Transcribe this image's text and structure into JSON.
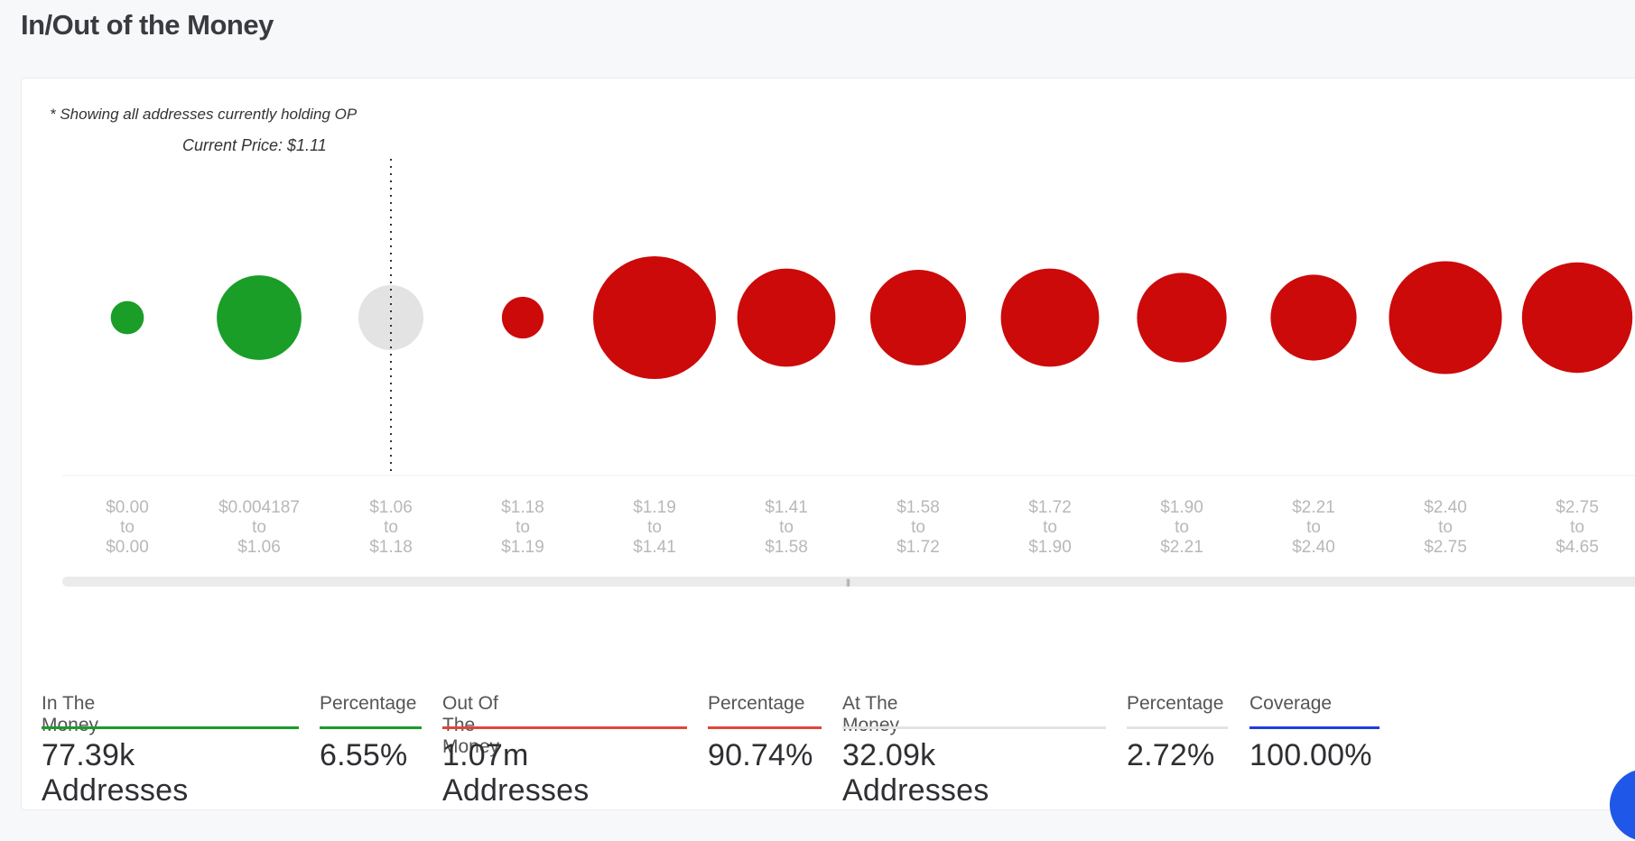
{
  "page": {
    "title": "In/Out of the Money"
  },
  "chart_note": "* Showing all addresses currently holding OP",
  "current_price_label": "Current Price: $1.11",
  "colors": {
    "in_the_money": "#1a9e27",
    "out_of_the_money": "#cc0a0a",
    "at_the_money": "#e3e3e3",
    "coverage": "#1f3fe0",
    "out_line": "#e0473a",
    "axis_text": "#b8b8b8"
  },
  "chart_data": {
    "type": "bubble",
    "current_price": 1.11,
    "x_ranges": [
      {
        "from": "$0.00",
        "to": "$0.00",
        "status": "in",
        "relative_size": 0.27
      },
      {
        "from": "$0.004187",
        "to": "$1.06",
        "status": "in",
        "relative_size": 0.69
      },
      {
        "from": "$1.06",
        "to": "$1.18",
        "status": "at",
        "relative_size": 0.53
      },
      {
        "from": "$1.18",
        "to": "$1.19",
        "status": "out",
        "relative_size": 0.34
      },
      {
        "from": "$1.19",
        "to": "$1.41",
        "status": "out",
        "relative_size": 1.0
      },
      {
        "from": "$1.41",
        "to": "$1.58",
        "status": "out",
        "relative_size": 0.8
      },
      {
        "from": "$1.58",
        "to": "$1.72",
        "status": "out",
        "relative_size": 0.78
      },
      {
        "from": "$1.72",
        "to": "$1.90",
        "status": "out",
        "relative_size": 0.8
      },
      {
        "from": "$1.90",
        "to": "$2.21",
        "status": "out",
        "relative_size": 0.73
      },
      {
        "from": "$2.21",
        "to": "$2.40",
        "status": "out",
        "relative_size": 0.7
      },
      {
        "from": "$2.40",
        "to": "$2.75",
        "status": "out",
        "relative_size": 0.92
      },
      {
        "from": "$2.75",
        "to": "$4.65",
        "status": "out",
        "relative_size": 0.9
      }
    ],
    "to_word": "to"
  },
  "stats": {
    "in_the_money": {
      "label": "In The Money",
      "value": "77.39k Addresses"
    },
    "in_percentage": {
      "label": "Percentage",
      "value": "6.55%"
    },
    "out_of_the_money": {
      "label": "Out Of The Money",
      "value": "1.07m Addresses"
    },
    "out_percentage": {
      "label": "Percentage",
      "value": "90.74%"
    },
    "at_the_money": {
      "label": "At The Money",
      "value": "32.09k Addresses"
    },
    "at_percentage": {
      "label": "Percentage",
      "value": "2.72%"
    },
    "coverage": {
      "label": "Coverage",
      "value": "100.00%"
    }
  },
  "scrollbar_grip": "|||"
}
